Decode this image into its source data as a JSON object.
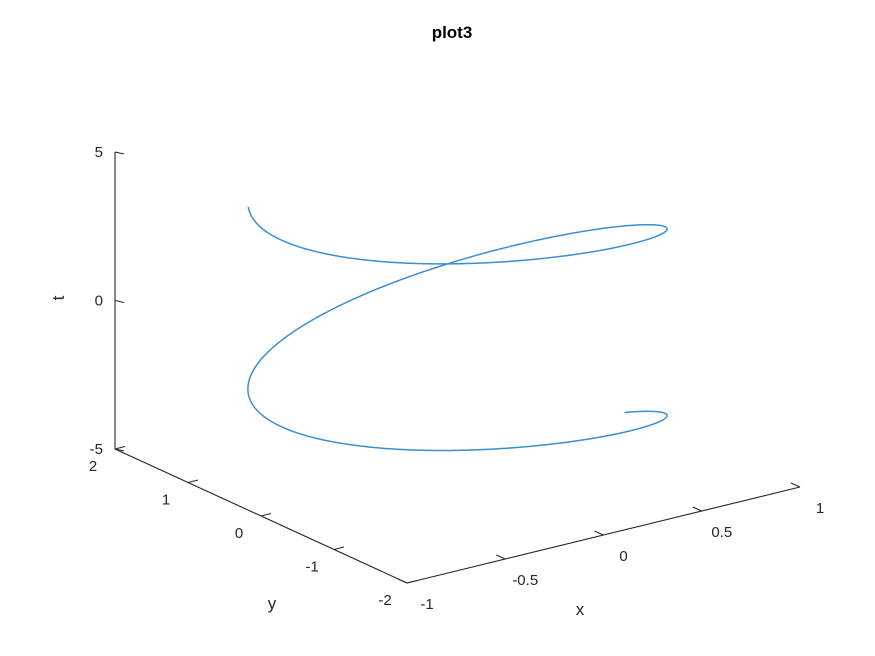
{
  "chart_data": {
    "type": "line",
    "title": "plot3",
    "xlabel": "x",
    "ylabel": "y",
    "zlabel": "t",
    "xlim": [
      -1,
      1
    ],
    "ylim": [
      -2,
      2
    ],
    "zlim": [
      -5,
      5
    ],
    "xticks": [
      -1,
      -0.5,
      0,
      0.5,
      1
    ],
    "yticks": [
      -2,
      -1,
      0,
      1,
      2
    ],
    "zticks": [
      -5,
      0,
      5
    ],
    "x_tick_labels": [
      "-1",
      "-0.5",
      "0",
      "0.5",
      "1"
    ],
    "y_tick_labels": [
      "-2",
      "-1",
      "0",
      "1",
      "2"
    ],
    "z_tick_labels": [
      "-5",
      "0",
      "5"
    ],
    "grid": false,
    "series": [
      {
        "x": "sin(t)",
        "y": "cos(t)",
        "t_range": [
          -5,
          5
        ],
        "color": "#3a8fd0"
      }
    ]
  }
}
